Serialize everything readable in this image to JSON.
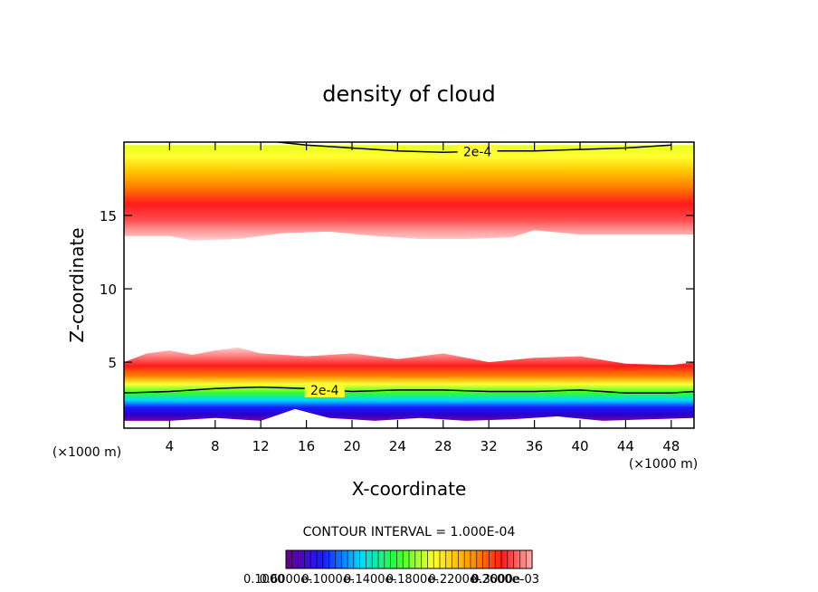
{
  "chart_data": {
    "type": "heatmap",
    "title": "density of cloud",
    "xlabel": "X-coordinate",
    "ylabel": "Z-coordinate",
    "x_unit_label": "(×1000 m)",
    "y_unit_label": "(×1000 m)",
    "xlim": [
      0,
      50
    ],
    "ylim": [
      0.5,
      20
    ],
    "x_ticks": [
      4,
      8,
      12,
      16,
      20,
      24,
      28,
      32,
      36,
      40,
      44,
      48
    ],
    "y_ticks": [
      5,
      10,
      15
    ],
    "grid": false,
    "upper_layer": {
      "base_z": [
        [
          0,
          13.6
        ],
        [
          4,
          13.6
        ],
        [
          6,
          13.3
        ],
        [
          10,
          13.4
        ],
        [
          14,
          13.8
        ],
        [
          18,
          13.9
        ],
        [
          22,
          13.6
        ],
        [
          26,
          13.4
        ],
        [
          30,
          13.4
        ],
        [
          34,
          13.5
        ],
        [
          36,
          14.0
        ],
        [
          40,
          13.7
        ],
        [
          44,
          13.7
        ],
        [
          50,
          13.7
        ]
      ],
      "peak_z": 15.6,
      "top_z": 19.8
    },
    "lower_layer": {
      "top_z": [
        [
          0,
          5.0
        ],
        [
          2,
          5.6
        ],
        [
          4,
          5.8
        ],
        [
          6,
          5.5
        ],
        [
          8,
          5.8
        ],
        [
          10,
          6.0
        ],
        [
          12,
          5.6
        ],
        [
          16,
          5.4
        ],
        [
          20,
          5.6
        ],
        [
          24,
          5.2
        ],
        [
          26,
          5.4
        ],
        [
          28,
          5.6
        ],
        [
          32,
          5.0
        ],
        [
          36,
          5.3
        ],
        [
          40,
          5.4
        ],
        [
          44,
          4.9
        ],
        [
          48,
          4.8
        ],
        [
          50,
          5.0
        ]
      ],
      "peak_z": 4.0,
      "base_z": [
        [
          0,
          1.0
        ],
        [
          4,
          1.0
        ],
        [
          8,
          1.2
        ],
        [
          12,
          1.0
        ],
        [
          15,
          1.8
        ],
        [
          18,
          1.2
        ],
        [
          22,
          1.0
        ],
        [
          26,
          1.2
        ],
        [
          30,
          1.0
        ],
        [
          34,
          1.1
        ],
        [
          38,
          1.3
        ],
        [
          42,
          1.0
        ],
        [
          46,
          1.1
        ],
        [
          50,
          1.2
        ]
      ]
    },
    "contour_lines": [
      {
        "label": "2e-4",
        "z": [
          [
            13.5,
            20.0
          ],
          [
            16,
            19.8
          ],
          [
            20,
            19.6
          ],
          [
            24,
            19.4
          ],
          [
            28,
            19.3
          ],
          [
            32,
            19.4
          ],
          [
            36,
            19.4
          ],
          [
            40,
            19.5
          ],
          [
            44,
            19.6
          ],
          [
            48,
            19.8
          ]
        ]
      },
      {
        "label": "2e-4",
        "z": [
          [
            0,
            2.9
          ],
          [
            4,
            3.0
          ],
          [
            8,
            3.2
          ],
          [
            12,
            3.3
          ],
          [
            16,
            3.2
          ],
          [
            20,
            3.0
          ],
          [
            24,
            3.1
          ],
          [
            28,
            3.1
          ],
          [
            32,
            3.0
          ],
          [
            36,
            3.0
          ],
          [
            40,
            3.1
          ],
          [
            44,
            2.9
          ],
          [
            48,
            2.9
          ],
          [
            50,
            3.0
          ]
        ]
      }
    ],
    "contour_interval_text": "CONTOUR INTERVAL = 1.000E-04",
    "colorbar_labels": [
      "0.1000",
      "0.6000e-",
      "0.1000e-",
      "0.1400e-",
      "0.1800e-",
      "0.2200e-",
      "0.2600e-",
      "0.3000e-03"
    ],
    "colors": {
      "purple": "#7a00a8",
      "blue": "#1a1aff",
      "cyan": "#00d8ff",
      "green": "#30ff30",
      "yellow": "#ffff30",
      "orange": "#ff9a00",
      "red": "#ff1a1a",
      "pink": "#ffc8c8"
    }
  }
}
